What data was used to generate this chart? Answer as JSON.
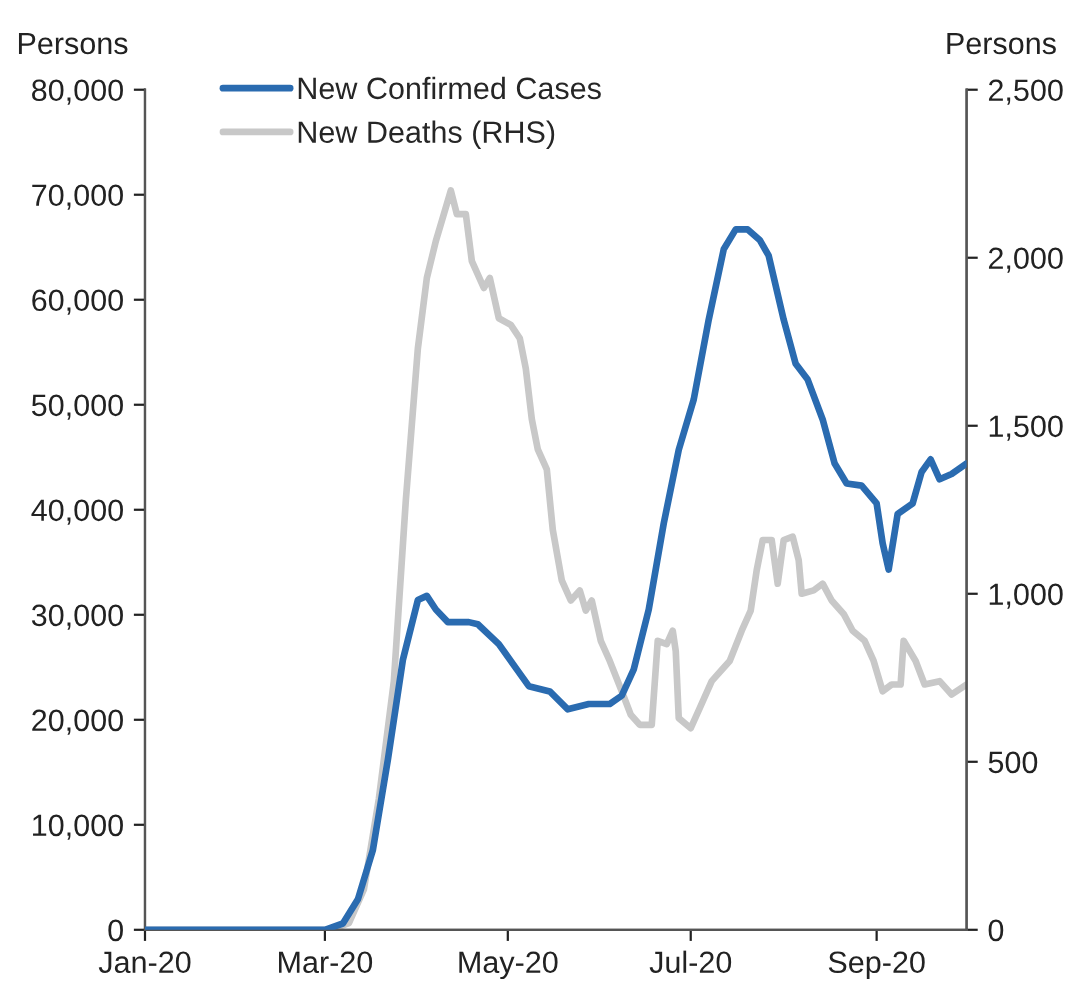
{
  "chart_data": {
    "type": "line",
    "ylabel": "Persons",
    "y2label": "Persons",
    "xlim": [
      "2020-01-01",
      "2020-10-01"
    ],
    "xticks": [
      {
        "value": "2020-01-01",
        "label": "Jan-20"
      },
      {
        "value": "2020-03-01",
        "label": "Mar-20"
      },
      {
        "value": "2020-05-01",
        "label": "May-20"
      },
      {
        "value": "2020-07-01",
        "label": "Jul-20"
      },
      {
        "value": "2020-09-01",
        "label": "Sep-20"
      }
    ],
    "ylim": [
      0,
      80000
    ],
    "yticks": [
      {
        "value": 0,
        "label": "0"
      },
      {
        "value": 10000,
        "label": "10,000"
      },
      {
        "value": 20000,
        "label": "20,000"
      },
      {
        "value": 30000,
        "label": "30,000"
      },
      {
        "value": 40000,
        "label": "40,000"
      },
      {
        "value": 50000,
        "label": "50,000"
      },
      {
        "value": 60000,
        "label": "60,000"
      },
      {
        "value": 70000,
        "label": "70,000"
      },
      {
        "value": 80000,
        "label": "80,000"
      }
    ],
    "y2lim": [
      0,
      2500
    ],
    "y2ticks": [
      {
        "value": 0,
        "label": "0"
      },
      {
        "value": 500,
        "label": "500"
      },
      {
        "value": 1000,
        "label": "1,000"
      },
      {
        "value": 1500,
        "label": "1,500"
      },
      {
        "value": 2000,
        "label": "2,000"
      },
      {
        "value": 2500,
        "label": "2,500"
      }
    ],
    "grid": false,
    "legend": "top left",
    "marker": "none",
    "line_style": "solid",
    "series": [
      {
        "name": "New Confirmed Cases",
        "color": "#2a6bb0",
        "x": [
          "2020-01-01",
          "2020-02-15",
          "2020-03-01",
          "2020-03-07",
          "2020-03-12",
          "2020-03-17",
          "2020-03-22",
          "2020-03-27",
          "2020-04-01",
          "2020-04-04",
          "2020-04-07",
          "2020-04-11",
          "2020-04-18",
          "2020-04-21",
          "2020-04-28",
          "2020-05-04",
          "2020-05-08",
          "2020-05-15",
          "2020-05-21",
          "2020-05-28",
          "2020-06-04",
          "2020-06-08",
          "2020-06-12",
          "2020-06-17",
          "2020-06-22",
          "2020-06-27",
          "2020-07-02",
          "2020-07-07",
          "2020-07-12",
          "2020-07-16",
          "2020-07-20",
          "2020-07-24",
          "2020-07-27",
          "2020-08-01",
          "2020-08-05",
          "2020-08-09",
          "2020-08-14",
          "2020-08-18",
          "2020-08-22",
          "2020-08-27",
          "2020-09-01",
          "2020-09-03",
          "2020-09-05",
          "2020-09-08",
          "2020-09-13",
          "2020-09-16",
          "2020-09-19",
          "2020-09-22",
          "2020-09-26",
          "2020-10-01"
        ],
        "values": [
          0,
          0,
          0,
          600,
          2900,
          7600,
          16200,
          25700,
          31400,
          31800,
          30500,
          29300,
          29300,
          29100,
          27200,
          24800,
          23200,
          22700,
          21000,
          21500,
          21500,
          22300,
          24800,
          30500,
          38700,
          45700,
          50500,
          58100,
          64800,
          66700,
          66700,
          65700,
          64200,
          58100,
          53900,
          52400,
          48600,
          44400,
          42500,
          42300,
          40600,
          36800,
          34300,
          39600,
          40600,
          43600,
          44800,
          42900,
          43400,
          44400
        ]
      },
      {
        "name": "New Deaths (RHS)",
        "color": "#c8c8c8",
        "axis": "y2",
        "x": [
          "2020-01-01",
          "2020-03-03",
          "2020-03-09",
          "2020-03-14",
          "2020-03-19",
          "2020-03-24",
          "2020-03-28",
          "2020-04-01",
          "2020-04-04",
          "2020-04-07",
          "2020-04-10",
          "2020-04-12",
          "2020-04-14",
          "2020-04-17",
          "2020-04-19",
          "2020-04-23",
          "2020-04-25",
          "2020-04-28",
          "2020-05-02",
          "2020-05-05",
          "2020-05-07",
          "2020-05-09",
          "2020-05-11",
          "2020-05-14",
          "2020-05-16",
          "2020-05-19",
          "2020-05-22",
          "2020-05-25",
          "2020-05-27",
          "2020-05-29",
          "2020-06-01",
          "2020-06-04",
          "2020-06-08",
          "2020-06-11",
          "2020-06-14",
          "2020-06-18",
          "2020-06-20",
          "2020-06-23",
          "2020-06-25",
          "2020-06-26",
          "2020-06-27",
          "2020-07-01",
          "2020-07-04",
          "2020-07-08",
          "2020-07-11",
          "2020-07-14",
          "2020-07-18",
          "2020-07-21",
          "2020-07-23",
          "2020-07-25",
          "2020-07-28",
          "2020-07-30",
          "2020-08-01",
          "2020-08-04",
          "2020-08-06",
          "2020-08-07",
          "2020-08-11",
          "2020-08-14",
          "2020-08-17",
          "2020-08-21",
          "2020-08-24",
          "2020-08-28",
          "2020-08-31",
          "2020-09-03",
          "2020-09-06",
          "2020-09-09",
          "2020-09-10",
          "2020-09-14",
          "2020-09-17",
          "2020-09-22",
          "2020-09-26",
          "2020-10-01"
        ],
        "values": [
          0,
          0,
          20,
          120,
          390,
          740,
          1280,
          1730,
          1940,
          2050,
          2140,
          2200,
          2130,
          2130,
          1990,
          1910,
          1940,
          1820,
          1800,
          1760,
          1670,
          1520,
          1430,
          1370,
          1190,
          1040,
          980,
          1010,
          950,
          980,
          860,
          800,
          710,
          640,
          610,
          610,
          860,
          850,
          890,
          830,
          630,
          600,
          660,
          740,
          770,
          800,
          890,
          950,
          1070,
          1160,
          1160,
          1030,
          1160,
          1170,
          1100,
          1000,
          1010,
          1030,
          980,
          940,
          890,
          860,
          800,
          710,
          730,
          730,
          860,
          800,
          730,
          740,
          700,
          730
        ]
      }
    ]
  }
}
